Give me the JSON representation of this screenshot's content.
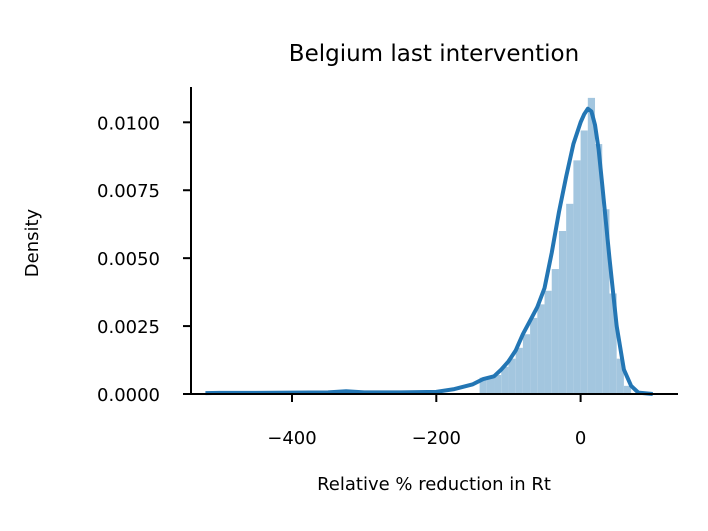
{
  "colors": {
    "hist_fill": "#a3c6df",
    "kde_line": "#2376b4",
    "axis": "#000000",
    "background": "#ffffff"
  },
  "chart_data": {
    "type": "area",
    "title": "Belgium last intervention",
    "xlabel": "Relative % reduction in Rt",
    "ylabel": "Density",
    "xlim": [
      -540,
      135
    ],
    "ylim": [
      0,
      0.0113
    ],
    "x_ticks": [
      -400,
      -200,
      0
    ],
    "x_tick_labels": [
      "−400",
      "−200",
      "0"
    ],
    "y_ticks": [
      0,
      0.0025,
      0.005,
      0.0075,
      0.01
    ],
    "y_tick_labels": [
      "0.0000",
      "0.0025",
      "0.0050",
      "0.0075",
      "0.0100"
    ],
    "grid": false,
    "legend": "none",
    "series": [
      {
        "kind": "histogram",
        "bin_width": 10,
        "bins": [
          {
            "x0": -140,
            "density": 0.0006
          },
          {
            "x0": -130,
            "density": 0.0006
          },
          {
            "x0": -120,
            "density": 0.0007
          },
          {
            "x0": -110,
            "density": 0.001
          },
          {
            "x0": -100,
            "density": 0.0013
          },
          {
            "x0": -90,
            "density": 0.0017
          },
          {
            "x0": -80,
            "density": 0.0022
          },
          {
            "x0": -70,
            "density": 0.0028
          },
          {
            "x0": -60,
            "density": 0.0033
          },
          {
            "x0": -50,
            "density": 0.0038
          },
          {
            "x0": -40,
            "density": 0.0046
          },
          {
            "x0": -30,
            "density": 0.006
          },
          {
            "x0": -20,
            "density": 0.007
          },
          {
            "x0": -10,
            "density": 0.0086
          },
          {
            "x0": 0,
            "density": 0.0097
          },
          {
            "x0": 10,
            "density": 0.0109
          },
          {
            "x0": 20,
            "density": 0.0092
          },
          {
            "x0": 30,
            "density": 0.0068
          },
          {
            "x0": 40,
            "density": 0.0037
          },
          {
            "x0": 50,
            "density": 0.0013
          },
          {
            "x0": 60,
            "density": 0.0003
          }
        ]
      },
      {
        "kind": "kde",
        "x": [
          -520,
          -500,
          -450,
          -400,
          -350,
          -325,
          -300,
          -250,
          -200,
          -175,
          -150,
          -135,
          -120,
          -110,
          -100,
          -90,
          -80,
          -70,
          -60,
          -50,
          -40,
          -30,
          -20,
          -10,
          0,
          5,
          10,
          15,
          20,
          25,
          30,
          40,
          50,
          60,
          70,
          80,
          100
        ],
        "y": [
          3e-05,
          4e-05,
          4e-05,
          5e-05,
          6e-05,
          0.0001,
          6e-05,
          6e-05,
          8e-05,
          0.00018,
          0.00035,
          0.00055,
          0.00065,
          0.0009,
          0.0012,
          0.0016,
          0.0022,
          0.0027,
          0.0032,
          0.0039,
          0.0052,
          0.0067,
          0.008,
          0.0092,
          0.01,
          0.0103,
          0.0105,
          0.0104,
          0.0099,
          0.009,
          0.0077,
          0.005,
          0.0025,
          0.0009,
          0.0003,
          5e-05,
          0.0
        ]
      }
    ]
  }
}
